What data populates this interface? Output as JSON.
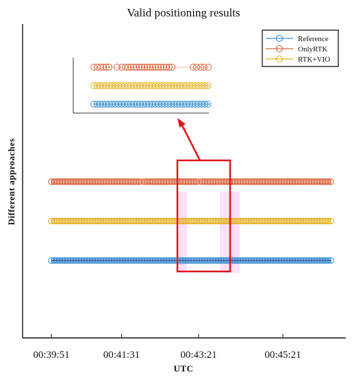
{
  "chart_data": {
    "type": "scatter",
    "title": "Valid positioning results",
    "xlabel": "UTC",
    "ylabel": "Different approaches",
    "x_ticks": [
      "00:39:51",
      "00:41:31",
      "00:43:21",
      "00:45:21"
    ],
    "legend_position": "top-right",
    "grid": false,
    "colors": {
      "Reference": "#3a8fd0",
      "OnlyRTK": "#d9623b",
      "RTK+VIO": "#e5b224",
      "highlight_box": "#e0161b",
      "highlight_band": "#f090f0"
    },
    "series": [
      {
        "name": "Reference",
        "level": 1,
        "x_range": [
          "00:39:51",
          "00:46:30"
        ]
      },
      {
        "name": "RTK+VIO",
        "level": 2,
        "x_range": [
          "00:39:51",
          "00:46:30"
        ]
      },
      {
        "name": "OnlyRTK",
        "level": 3,
        "x_range": [
          "00:39:51",
          "00:46:30"
        ],
        "gaps_near": [
          "00:42:00",
          "00:43:21"
        ]
      }
    ],
    "inset": {
      "description": "zoomed detail of highlighted region",
      "series_order": [
        "OnlyRTK",
        "RTK+VIO",
        "Reference"
      ]
    }
  }
}
